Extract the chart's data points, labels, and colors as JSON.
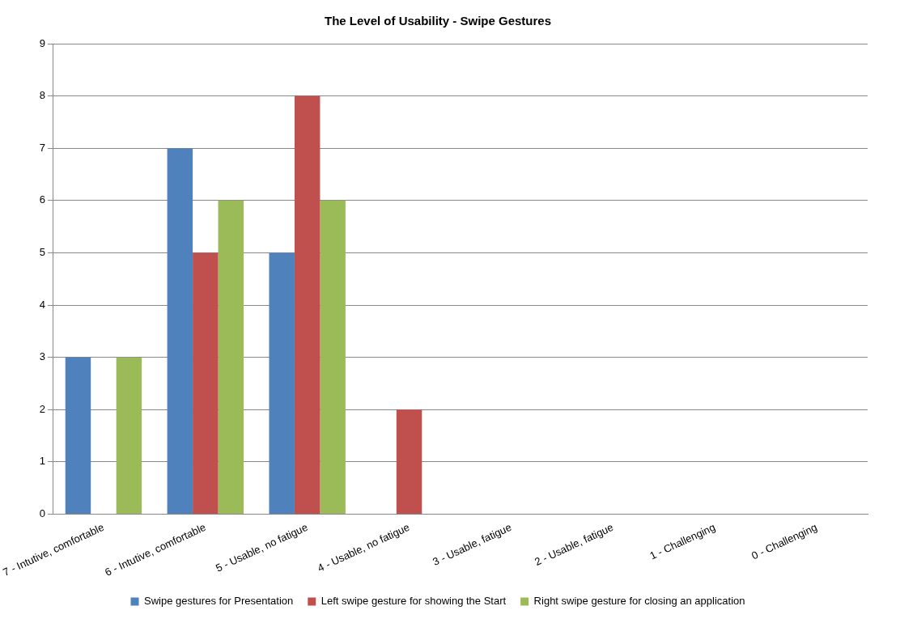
{
  "chart_data": {
    "type": "bar",
    "title": "The Level of Usability - Swipe Gestures",
    "categories": [
      "7 - Intutive, comfortable",
      "6 - Intutive, comfortable",
      "5 - Usable, no fatigue",
      "4 - Usable, no fatigue",
      "3 - Usable, fatigue",
      "2 - Usable, fatigue",
      "1 - Challenging",
      "0 - Challenging"
    ],
    "series": [
      {
        "name": "Swipe gestures for Presentation",
        "color": "#4f81bd",
        "values": [
          3,
          7,
          5,
          0,
          0,
          0,
          0,
          0
        ]
      },
      {
        "name": "Left swipe gesture for showing the Start",
        "color": "#c0504d",
        "values": [
          0,
          5,
          8,
          2,
          0,
          0,
          0,
          0
        ]
      },
      {
        "name": "Right swipe gesture for closing an application",
        "color": "#9bbb59",
        "values": [
          3,
          6,
          6,
          0,
          0,
          0,
          0,
          0
        ]
      }
    ],
    "ylim": [
      0,
      9
    ],
    "yticks": [
      0,
      1,
      2,
      3,
      4,
      5,
      6,
      7,
      8,
      9
    ],
    "grid": "y",
    "legend": "bottom"
  }
}
